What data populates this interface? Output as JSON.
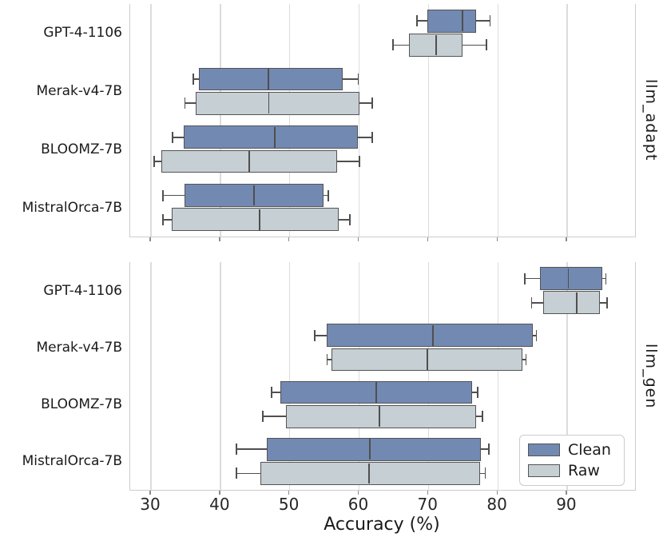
{
  "figure": {
    "xlabel": "Accuracy (%)",
    "facet_labels": [
      "llm_adapt",
      "llm_gen"
    ],
    "categories": [
      "GPT-4-1106",
      "Merak-v4-7B",
      "BLOOMZ-7B",
      "MistralOrca-7B"
    ],
    "legend": [
      {
        "label": "Clean"
      },
      {
        "label": "Raw"
      }
    ]
  },
  "colors": {
    "clean_fill": "#7289b2",
    "raw_fill": "#c6cfd3",
    "box_edge": "#545454",
    "whisker": "#4f4f4f",
    "grid": "#dcdcdc",
    "spine": "#cccccc",
    "text": "#1a1a1a"
  },
  "chart_data": {
    "type": "boxplot",
    "orientation": "horizontal",
    "title": "",
    "xlabel": "Accuracy (%)",
    "ylabel": "",
    "x_ticks": [
      30,
      40,
      50,
      60,
      70,
      80,
      90
    ],
    "xlim": [
      27.0,
      99.8
    ],
    "grid": true,
    "legend_position": "lower right",
    "categories": [
      "GPT-4-1106",
      "Merak-v4-7B",
      "BLOOMZ-7B",
      "MistralOrca-7B"
    ],
    "series_colors": {
      "Clean": "#7289b2",
      "Raw": "#c6cfd3"
    },
    "legend": [
      {
        "label": "Clean"
      },
      {
        "label": "Raw"
      }
    ],
    "facets": [
      {
        "name": "llm_adapt",
        "series": [
          {
            "name": "Clean",
            "boxes": [
              {
                "whisker_low": 68.5,
                "q1": 70.0,
                "median": 75.0,
                "q3": 77.0,
                "whisker_high": 79.0
              },
              {
                "whisker_low": 36.2,
                "q1": 37.0,
                "median": 47.0,
                "q3": 57.7,
                "whisker_high": 60.0
              },
              {
                "whisker_low": 33.2,
                "q1": 34.8,
                "median": 48.0,
                "q3": 60.0,
                "whisker_high": 62.0
              },
              {
                "whisker_low": 31.8,
                "q1": 35.0,
                "median": 45.0,
                "q3": 55.0,
                "whisker_high": 55.7
              }
            ]
          },
          {
            "name": "Raw",
            "boxes": [
              {
                "whisker_low": 65.0,
                "q1": 67.3,
                "median": 71.2,
                "q3": 75.0,
                "whisker_high": 78.5
              },
              {
                "whisker_low": 35.0,
                "q1": 36.6,
                "median": 47.1,
                "q3": 60.2,
                "whisker_high": 62.0
              },
              {
                "whisker_low": 30.6,
                "q1": 31.6,
                "median": 44.3,
                "q3": 57.0,
                "whisker_high": 60.2
              },
              {
                "whisker_low": 31.8,
                "q1": 33.1,
                "median": 45.8,
                "q3": 57.2,
                "whisker_high": 58.8
              }
            ]
          }
        ]
      },
      {
        "name": "llm_gen",
        "series": [
          {
            "name": "Clean",
            "boxes": [
              {
                "whisker_low": 84.0,
                "q1": 86.2,
                "median": 90.3,
                "q3": 95.2,
                "whisker_high": 95.7
              },
              {
                "whisker_low": 53.7,
                "q1": 55.4,
                "median": 70.8,
                "q3": 85.2,
                "whisker_high": 85.7
              },
              {
                "whisker_low": 47.5,
                "q1": 48.8,
                "median": 62.6,
                "q3": 76.4,
                "whisker_high": 77.2
              },
              {
                "whisker_low": 42.4,
                "q1": 46.8,
                "median": 61.7,
                "q3": 77.7,
                "whisker_high": 78.8
              }
            ]
          },
          {
            "name": "Raw",
            "boxes": [
              {
                "whisker_low": 85.0,
                "q1": 86.7,
                "median": 91.5,
                "q3": 94.9,
                "whisker_high": 95.9
              },
              {
                "whisker_low": 55.5,
                "q1": 56.1,
                "median": 70.0,
                "q3": 83.7,
                "whisker_high": 84.2
              },
              {
                "whisker_low": 46.2,
                "q1": 49.6,
                "median": 63.1,
                "q3": 77.0,
                "whisker_high": 77.9
              },
              {
                "whisker_low": 42.4,
                "q1": 45.9,
                "median": 61.6,
                "q3": 77.6,
                "whisker_high": 78.3
              }
            ]
          }
        ]
      }
    ]
  }
}
